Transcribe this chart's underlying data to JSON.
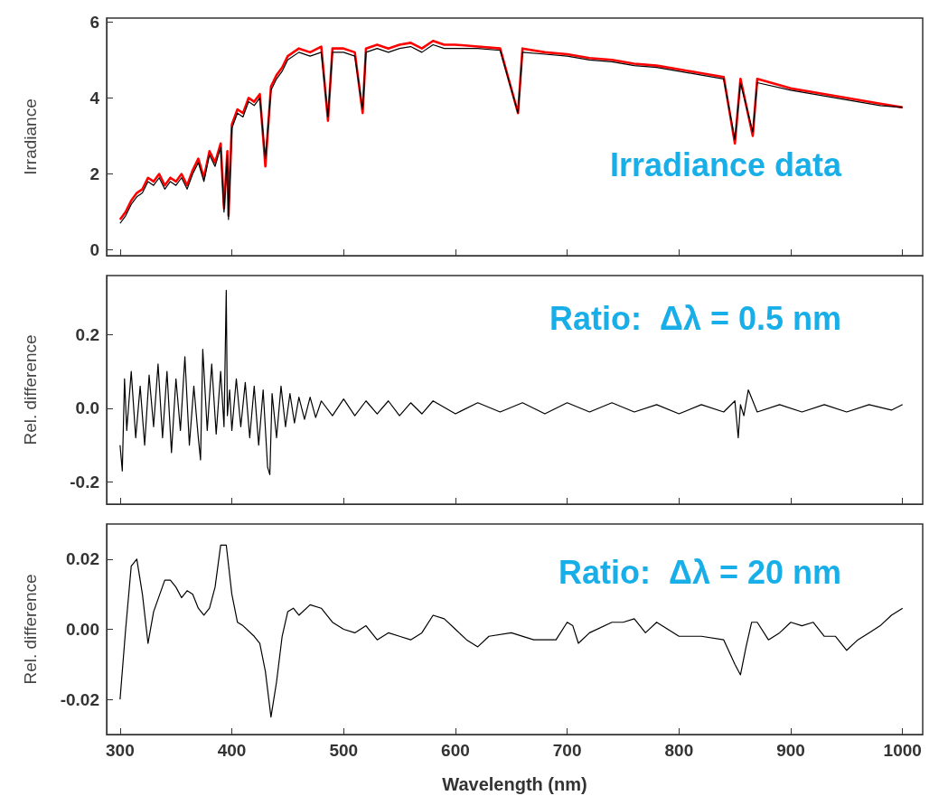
{
  "chart_data": [
    {
      "type": "line",
      "ylabel": "Irradiance",
      "xlim": [
        288,
        1018
      ],
      "xticks": [
        300,
        400,
        500,
        600,
        700,
        800,
        900,
        1000
      ],
      "ylim": [
        -0.15,
        6.1
      ],
      "yticks": [
        0,
        2,
        4,
        6
      ],
      "tick_labels": "y",
      "grid": false,
      "marker": "none",
      "line_style": "solid",
      "annotations": [
        "Irradiance data"
      ],
      "series": [
        {
          "color": "#ff0000",
          "x": [
            300,
            305,
            310,
            315,
            320,
            325,
            330,
            335,
            340,
            345,
            350,
            355,
            360,
            365,
            370,
            375,
            380,
            385,
            390,
            393,
            396,
            397,
            400,
            405,
            410,
            415,
            420,
            425,
            430,
            435,
            440,
            445,
            450,
            460,
            470,
            480,
            486,
            490,
            500,
            510,
            517,
            520,
            530,
            540,
            550,
            560,
            570,
            580,
            590,
            600,
            620,
            640,
            656,
            660,
            680,
            700,
            720,
            740,
            760,
            780,
            800,
            820,
            840,
            850,
            855,
            866,
            870,
            900,
            920,
            940,
            960,
            980,
            1000
          ],
          "values": [
            0.8,
            1.0,
            1.3,
            1.5,
            1.6,
            1.9,
            1.8,
            2.0,
            1.7,
            1.9,
            1.8,
            2.0,
            1.7,
            2.1,
            2.4,
            1.9,
            2.6,
            2.3,
            2.8,
            1.1,
            2.6,
            0.9,
            3.3,
            3.7,
            3.6,
            4.0,
            3.9,
            4.1,
            2.2,
            4.3,
            4.6,
            4.8,
            5.1,
            5.3,
            5.2,
            5.35,
            3.4,
            5.3,
            5.3,
            5.2,
            3.6,
            5.3,
            5.4,
            5.3,
            5.4,
            5.45,
            5.3,
            5.5,
            5.4,
            5.4,
            5.35,
            5.3,
            3.6,
            5.3,
            5.2,
            5.15,
            5.05,
            5.0,
            4.9,
            4.85,
            4.75,
            4.65,
            4.55,
            2.8,
            4.5,
            3.0,
            4.5,
            4.25,
            4.15,
            4.05,
            3.95,
            3.85,
            3.75
          ]
        },
        {
          "color": "#000000",
          "x": [
            300,
            305,
            310,
            315,
            320,
            325,
            330,
            335,
            340,
            345,
            350,
            355,
            360,
            365,
            370,
            375,
            380,
            385,
            390,
            393,
            396,
            397,
            400,
            405,
            410,
            415,
            420,
            425,
            430,
            435,
            440,
            445,
            450,
            460,
            470,
            480,
            486,
            490,
            500,
            510,
            517,
            520,
            530,
            540,
            550,
            560,
            570,
            580,
            590,
            600,
            620,
            640,
            656,
            660,
            680,
            700,
            720,
            740,
            760,
            780,
            800,
            820,
            840,
            850,
            855,
            866,
            870,
            900,
            920,
            940,
            960,
            980,
            1000
          ],
          "values": [
            0.7,
            0.9,
            1.2,
            1.4,
            1.5,
            1.8,
            1.7,
            1.9,
            1.6,
            1.8,
            1.7,
            1.9,
            1.6,
            2.0,
            2.3,
            1.8,
            2.5,
            2.2,
            2.7,
            1.0,
            2.5,
            0.8,
            3.2,
            3.6,
            3.5,
            3.9,
            3.8,
            4.0,
            2.4,
            4.2,
            4.5,
            4.7,
            5.0,
            5.2,
            5.1,
            5.2,
            3.5,
            5.2,
            5.2,
            5.1,
            3.7,
            5.2,
            5.3,
            5.2,
            5.3,
            5.35,
            5.2,
            5.4,
            5.3,
            5.3,
            5.3,
            5.25,
            3.6,
            5.2,
            5.15,
            5.1,
            5.0,
            4.95,
            4.85,
            4.8,
            4.7,
            4.6,
            4.5,
            2.9,
            4.4,
            3.1,
            4.4,
            4.2,
            4.1,
            4.0,
            3.9,
            3.8,
            3.75
          ]
        }
      ]
    },
    {
      "type": "line",
      "ylabel": "Rel. difference",
      "xlim": [
        288,
        1018
      ],
      "xticks": [
        300,
        400,
        500,
        600,
        700,
        800,
        900,
        1000
      ],
      "ylim": [
        -0.26,
        0.36
      ],
      "yticks": [
        {
          "value": -0.2,
          "label": "-0.2"
        },
        {
          "value": 0,
          "label": "0.0"
        },
        {
          "value": 0.2,
          "label": "0.2"
        }
      ],
      "tick_labels": "y",
      "grid": false,
      "marker": "none",
      "line_style": "solid",
      "annotations": [
        "Ratio:  Δλ = 0.5 nm"
      ],
      "series": [
        {
          "color": "#000000",
          "x": [
            300,
            302,
            304,
            306,
            310,
            314,
            318,
            322,
            326,
            330,
            334,
            338,
            342,
            346,
            350,
            354,
            358,
            362,
            366,
            370,
            372,
            374,
            378,
            382,
            386,
            390,
            393,
            395,
            396,
            398,
            400,
            404,
            408,
            412,
            416,
            420,
            424,
            428,
            432,
            434,
            436,
            440,
            444,
            448,
            452,
            456,
            460,
            465,
            470,
            475,
            480,
            490,
            500,
            510,
            520,
            530,
            540,
            550,
            560,
            570,
            580,
            600,
            620,
            640,
            660,
            680,
            700,
            720,
            740,
            760,
            780,
            800,
            820,
            840,
            850,
            853,
            855,
            858,
            862,
            870,
            890,
            910,
            930,
            950,
            970,
            990,
            1000
          ],
          "values": [
            -0.1,
            -0.17,
            0.08,
            -0.06,
            0.1,
            -0.08,
            0.06,
            -0.1,
            0.09,
            -0.05,
            0.12,
            -0.08,
            0.1,
            -0.12,
            0.08,
            -0.06,
            0.14,
            -0.1,
            0.06,
            -0.08,
            -0.14,
            0.16,
            -0.06,
            0.12,
            -0.07,
            0.1,
            -0.05,
            0.32,
            -0.02,
            0.05,
            -0.06,
            0.08,
            -0.05,
            0.07,
            -0.08,
            0.06,
            -0.1,
            0.05,
            -0.16,
            -0.18,
            0.04,
            -0.08,
            0.06,
            -0.05,
            0.04,
            -0.04,
            0.03,
            -0.03,
            0.03,
            -0.025,
            0.02,
            -0.02,
            0.025,
            -0.02,
            0.02,
            -0.015,
            0.02,
            -0.02,
            0.015,
            -0.015,
            0.02,
            -0.015,
            0.015,
            -0.01,
            0.015,
            -0.015,
            0.015,
            -0.01,
            0.015,
            -0.01,
            0.01,
            -0.015,
            0.01,
            -0.01,
            0.02,
            -0.08,
            0.01,
            -0.02,
            0.05,
            -0.01,
            0.01,
            -0.01,
            0.01,
            -0.01,
            0.01,
            -0.005,
            0.01
          ]
        }
      ]
    },
    {
      "type": "line",
      "ylabel": "Rel. difference",
      "xlabel": "Wavelength (nm)",
      "xlim": [
        288,
        1018
      ],
      "xticks": [
        300,
        400,
        500,
        600,
        700,
        800,
        900,
        1000
      ],
      "ylim": [
        -0.03,
        0.03
      ],
      "yticks": [
        {
          "value": -0.02,
          "label": "-0.02"
        },
        {
          "value": 0,
          "label": "0.00"
        },
        {
          "value": 0.02,
          "label": "0.02"
        }
      ],
      "grid": false,
      "marker": "none",
      "line_style": "solid",
      "annotations": [
        "Ratio:  Δλ = 20 nm"
      ],
      "series": [
        {
          "color": "#000000",
          "x": [
            300,
            305,
            310,
            315,
            320,
            325,
            330,
            340,
            345,
            350,
            355,
            360,
            365,
            370,
            375,
            380,
            385,
            390,
            395,
            400,
            405,
            410,
            420,
            425,
            430,
            435,
            440,
            445,
            450,
            455,
            460,
            470,
            480,
            490,
            500,
            510,
            520,
            530,
            540,
            550,
            560,
            570,
            580,
            590,
            600,
            610,
            620,
            630,
            650,
            670,
            690,
            700,
            705,
            710,
            720,
            740,
            750,
            760,
            770,
            780,
            790,
            800,
            820,
            840,
            850,
            855,
            860,
            865,
            870,
            880,
            890,
            900,
            910,
            920,
            930,
            940,
            950,
            960,
            970,
            980,
            990,
            1000
          ],
          "values": [
            -0.02,
            0.0,
            0.018,
            0.02,
            0.01,
            -0.004,
            0.005,
            0.014,
            0.014,
            0.012,
            0.009,
            0.011,
            0.01,
            0.006,
            0.004,
            0.006,
            0.012,
            0.024,
            0.024,
            0.01,
            0.002,
            0.001,
            -0.002,
            -0.004,
            -0.012,
            -0.025,
            -0.015,
            -0.002,
            0.005,
            0.006,
            0.004,
            0.007,
            0.006,
            0.002,
            0.0,
            -0.001,
            0.001,
            -0.003,
            -0.001,
            -0.002,
            -0.003,
            -0.001,
            0.004,
            0.003,
            0.0,
            -0.003,
            -0.005,
            -0.002,
            -0.001,
            -0.003,
            -0.003,
            0.002,
            0.001,
            -0.004,
            -0.001,
            0.002,
            0.002,
            0.003,
            -0.001,
            0.002,
            0.0,
            -0.002,
            -0.002,
            -0.003,
            -0.01,
            -0.013,
            -0.005,
            0.002,
            0.002,
            -0.003,
            -0.001,
            0.002,
            0.001,
            0.002,
            -0.002,
            -0.002,
            -0.006,
            -0.003,
            -0.001,
            0.001,
            0.004,
            0.006
          ]
        }
      ]
    }
  ]
}
